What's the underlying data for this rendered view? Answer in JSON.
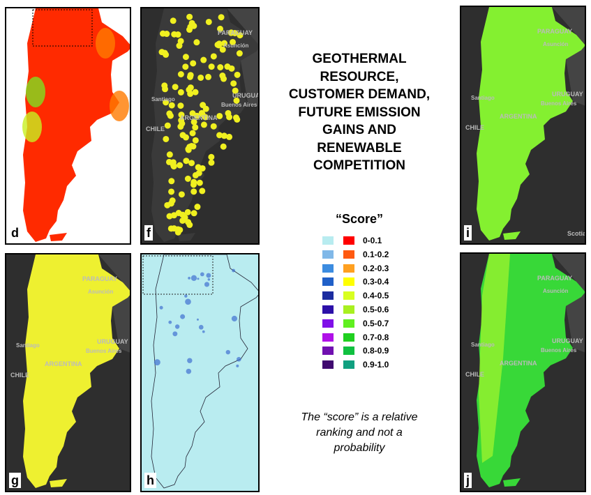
{
  "title": "GEOTHERMAL RESOURCE, CUSTOMER DEMAND, FUTURE EMISSION GAINS AND RENEWABLE COMPETITION",
  "legend": {
    "title": "“Score”",
    "items": [
      {
        "label": "0-0.1",
        "colors": [
          "#b8ecf0",
          "#ff0000"
        ]
      },
      {
        "label": "0.1-0.2",
        "colors": [
          "#80b8e8",
          "#ff5a10"
        ]
      },
      {
        "label": "0.2-0.3",
        "colors": [
          "#3c8ce0",
          "#ffa020"
        ]
      },
      {
        "label": "0.3-0.4",
        "colors": [
          "#2060c8",
          "#ffff00"
        ]
      },
      {
        "label": "0.4-0.5",
        "colors": [
          "#1c2ca0",
          "#d8ff20"
        ]
      },
      {
        "label": "0.5-0.6",
        "colors": [
          "#2c10a8",
          "#a8f020"
        ]
      },
      {
        "label": "0.5-0.7",
        "colors": [
          "#8010e8",
          "#60f020"
        ]
      },
      {
        "label": "0.7-0.8",
        "colors": [
          "#b010e8",
          "#20d020"
        ]
      },
      {
        "label": "0.8-0.9",
        "colors": [
          "#7010b0",
          "#10c040"
        ]
      },
      {
        "label": "0.9-1.0",
        "colors": [
          "#400a70",
          "#10a080"
        ]
      }
    ]
  },
  "note": "The “score” is a relative ranking and not a probability",
  "panels": [
    {
      "letter": "d"
    },
    {
      "letter": "f",
      "labels": [
        "PARAGUAY",
        "Asunción",
        "URUGUAY",
        "Santiago",
        "Buenos Aires",
        "CHILE",
        "ARGENTINA"
      ]
    },
    {
      "letter": "g",
      "labels": [
        "PARAGUAY",
        "Asunción",
        "URUGUAY",
        "Santiago",
        "Buenos Aires",
        "CHILE",
        "ARGENTINA"
      ]
    },
    {
      "letter": "h"
    },
    {
      "letter": "i",
      "labels": [
        "PARAGUAY",
        "Asunción",
        "URUGUAY",
        "Santiago",
        "Buenos Aires",
        "CHILE",
        "ARGENTINA",
        "Scotia Sea"
      ]
    },
    {
      "letter": "j",
      "labels": [
        "PARAGUAY",
        "Asunción",
        "URUGUAY",
        "Santiago",
        "Buenos Aires",
        "CHILE",
        "ARGENTINA"
      ]
    }
  ]
}
